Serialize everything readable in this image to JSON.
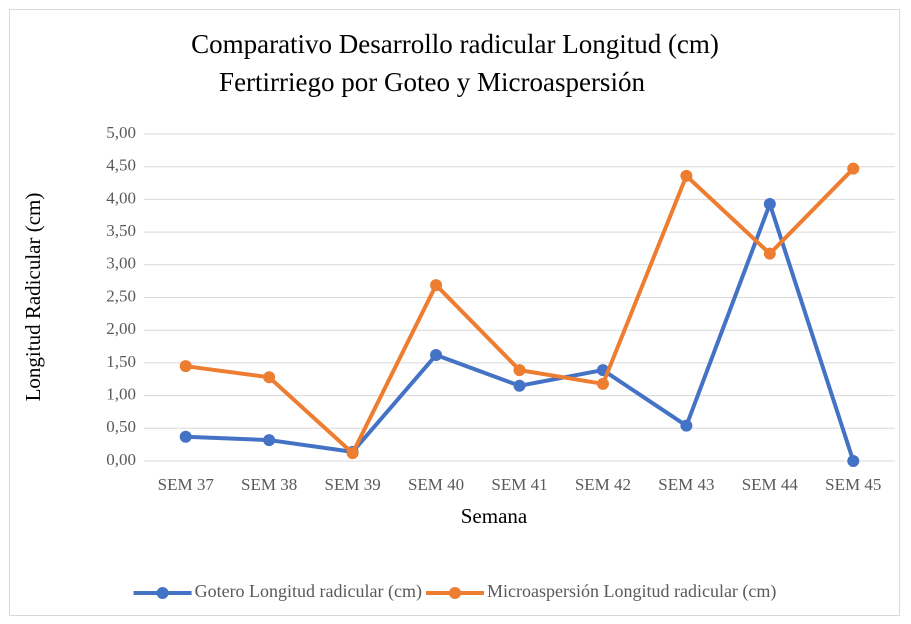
{
  "chart_data": {
    "type": "line",
    "title": [
      "Comparativo Desarrollo radicular Longitud (cm)",
      "Fertirriego por Goteo y Microaspersión"
    ],
    "x_label": "Semana",
    "y_label": "Longitud Radicular (cm)",
    "categories": [
      "SEM 37",
      "SEM 38",
      "SEM 39",
      "SEM 40",
      "SEM 41",
      "SEM 42",
      "SEM 43",
      "SEM 44",
      "SEM 45"
    ],
    "series": [
      {
        "name": "Gotero Longitud radicular (cm)",
        "color": "#4472c4",
        "values": [
          0.37,
          0.32,
          0.14,
          1.62,
          1.15,
          1.39,
          0.54,
          3.93,
          0
        ]
      },
      {
        "name": "Microaspersión Longitud radicular (cm)",
        "color": "#ed7d31",
        "values": [
          1.45,
          1.28,
          0.12,
          2.69,
          1.39,
          1.18,
          4.36,
          3.17,
          4.47
        ]
      }
    ],
    "ylim": [
      0,
      5
    ],
    "yticks": [
      {
        "value": 0,
        "label": "0,00"
      },
      {
        "value": 0.5,
        "label": "0,50"
      },
      {
        "value": 1,
        "label": "1,00"
      },
      {
        "value": 1.5,
        "label": "1,50"
      },
      {
        "value": 2,
        "label": "2,00"
      },
      {
        "value": 2.5,
        "label": "2,50"
      },
      {
        "value": 3,
        "label": "3,00"
      },
      {
        "value": 3.5,
        "label": "3,50"
      },
      {
        "value": 4,
        "label": "4,00"
      },
      {
        "value": 4.5,
        "label": "4,50"
      },
      {
        "value": 5,
        "label": "5,00"
      }
    ],
    "grid": true,
    "legend": "bottom"
  }
}
